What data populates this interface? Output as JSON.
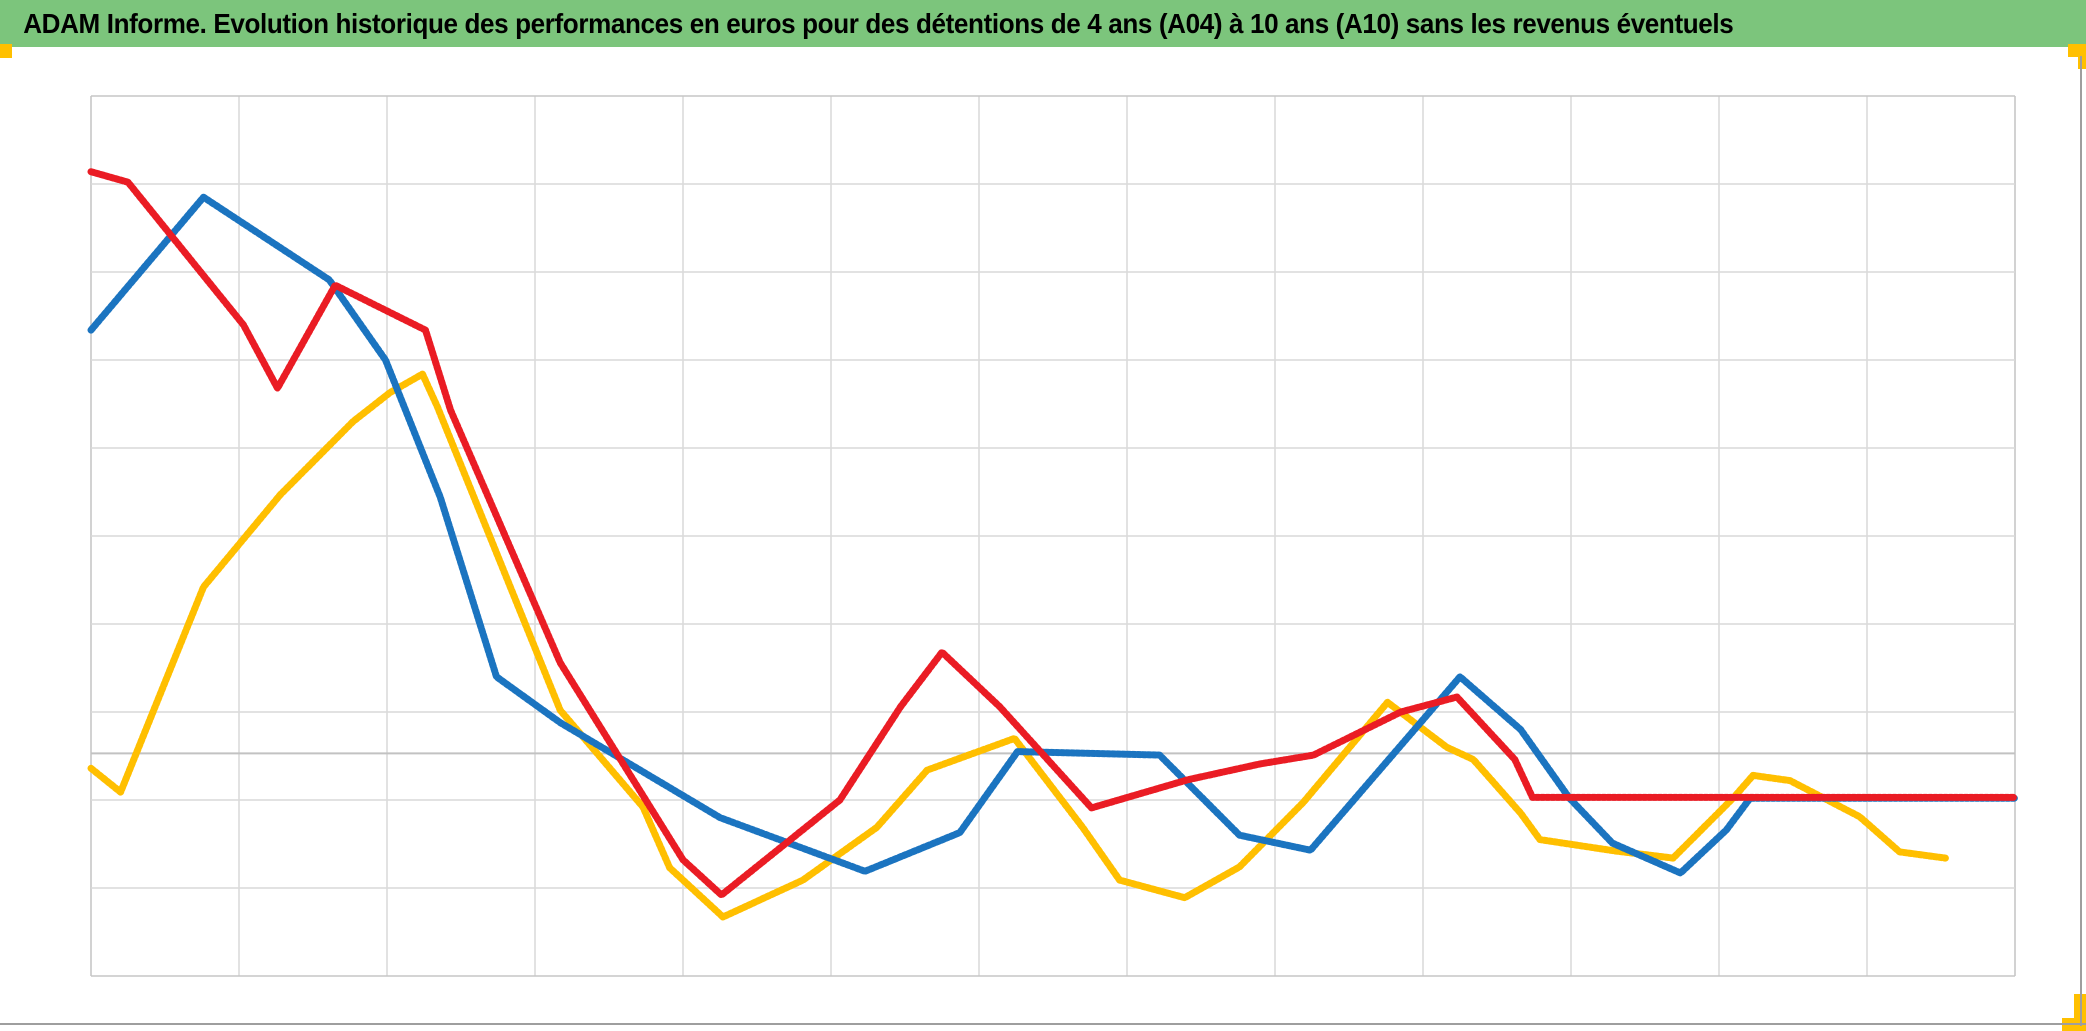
{
  "header": {
    "title": "ADAM Informe. Evolution historique des performances en euros pour des détentions de 4 ans (A04) à 10 ans (A10) sans les revenus éventuels",
    "background_color": "#7CC57C",
    "text_color": "#000000"
  },
  "page_markers": {
    "color": "#FFC000",
    "description": "yellow page-break corner marks"
  },
  "frame": {
    "gridline_color": "#D9D9D9",
    "plot_border_color": "#C6C6C6",
    "outer_line_color": "#9E9E9E",
    "background": "#FFFFFF"
  },
  "chart_data": {
    "type": "line",
    "title": "ADAM Informe. Evolution historique des performances en euros pour des détentions de 4 ans (A04) à 10 ans (A10) sans les revenus éventuels",
    "legend": "none",
    "marker_style": "dense plus markers forming thick dashed-looking lines",
    "x_axis": {
      "labels_visible": false,
      "gridlines": 14,
      "range_units": [
        0,
        13
      ]
    },
    "y_axis": {
      "labels_visible": false,
      "gridlines": 11,
      "range_units": [
        0,
        10
      ],
      "baseline_v": 2.53
    },
    "units_note": "No axis tick labels are visible; point coordinates are estimated in gridline units: u = vertical-gridline intervals from left edge (0-13), v = horizontal-gridline intervals above plot bottom (0-10).",
    "series": [
      {
        "id": "yellow",
        "name": "yellow series",
        "color": "#FFBF00",
        "points": [
          [
            0,
            2.36
          ],
          [
            0.2,
            2.09
          ],
          [
            0.76,
            4.42
          ],
          [
            1.28,
            5.47
          ],
          [
            1.77,
            6.3
          ],
          [
            2.02,
            6.63
          ],
          [
            2.24,
            6.84
          ],
          [
            2.34,
            6.47
          ],
          [
            3.17,
            3.02
          ],
          [
            3.73,
            1.92
          ],
          [
            3.91,
            1.23
          ],
          [
            4.27,
            0.67
          ],
          [
            4.81,
            1.09
          ],
          [
            5.31,
            1.69
          ],
          [
            5.65,
            2.34
          ],
          [
            6.24,
            2.7
          ],
          [
            6.7,
            1.69
          ],
          [
            6.95,
            1.09
          ],
          [
            7.39,
            0.89
          ],
          [
            7.76,
            1.24
          ],
          [
            8.19,
            1.97
          ],
          [
            8.76,
            3.11
          ],
          [
            9.16,
            2.6
          ],
          [
            9.34,
            2.46
          ],
          [
            9.66,
            1.85
          ],
          [
            9.79,
            1.55
          ],
          [
            10.3,
            1.42
          ],
          [
            10.69,
            1.34
          ],
          [
            11.1,
            2.03
          ],
          [
            11.23,
            2.28
          ],
          [
            11.48,
            2.22
          ],
          [
            11.95,
            1.81
          ],
          [
            12.22,
            1.41
          ],
          [
            12.53,
            1.34
          ]
        ]
      },
      {
        "id": "blue",
        "name": "blue series",
        "color": "#1B74C0",
        "points": [
          [
            0,
            7.34
          ],
          [
            0.76,
            8.85
          ],
          [
            1.61,
            7.91
          ],
          [
            1.99,
            7.0
          ],
          [
            2.36,
            5.44
          ],
          [
            2.74,
            3.4
          ],
          [
            3.17,
            2.88
          ],
          [
            4.25,
            1.8
          ],
          [
            5.23,
            1.19
          ],
          [
            5.87,
            1.63
          ],
          [
            6.26,
            2.55
          ],
          [
            7.22,
            2.51
          ],
          [
            7.76,
            1.6
          ],
          [
            8.24,
            1.43
          ],
          [
            9.25,
            3.4
          ],
          [
            9.66,
            2.8
          ],
          [
            9.99,
            2.02
          ],
          [
            10.28,
            1.51
          ],
          [
            10.74,
            1.17
          ],
          [
            11.05,
            1.66
          ],
          [
            11.21,
            2.02
          ],
          [
            13,
            2.02
          ]
        ]
      },
      {
        "id": "red",
        "name": "red series",
        "color": "#EA1C24",
        "points": [
          [
            0,
            9.14
          ],
          [
            0.25,
            9.02
          ],
          [
            1.03,
            7.4
          ],
          [
            1.26,
            6.68
          ],
          [
            1.65,
            7.85
          ],
          [
            2.26,
            7.34
          ],
          [
            2.43,
            6.43
          ],
          [
            3.17,
            3.56
          ],
          [
            4.0,
            1.32
          ],
          [
            4.26,
            0.92
          ],
          [
            5.06,
            2.0
          ],
          [
            5.47,
            3.06
          ],
          [
            5.75,
            3.68
          ],
          [
            6.14,
            3.06
          ],
          [
            6.76,
            1.91
          ],
          [
            7.41,
            2.23
          ],
          [
            7.9,
            2.41
          ],
          [
            8.26,
            2.51
          ],
          [
            8.85,
            3.0
          ],
          [
            9.23,
            3.17
          ],
          [
            9.62,
            2.46
          ],
          [
            9.74,
            2.03
          ],
          [
            13,
            2.03
          ]
        ]
      }
    ]
  }
}
